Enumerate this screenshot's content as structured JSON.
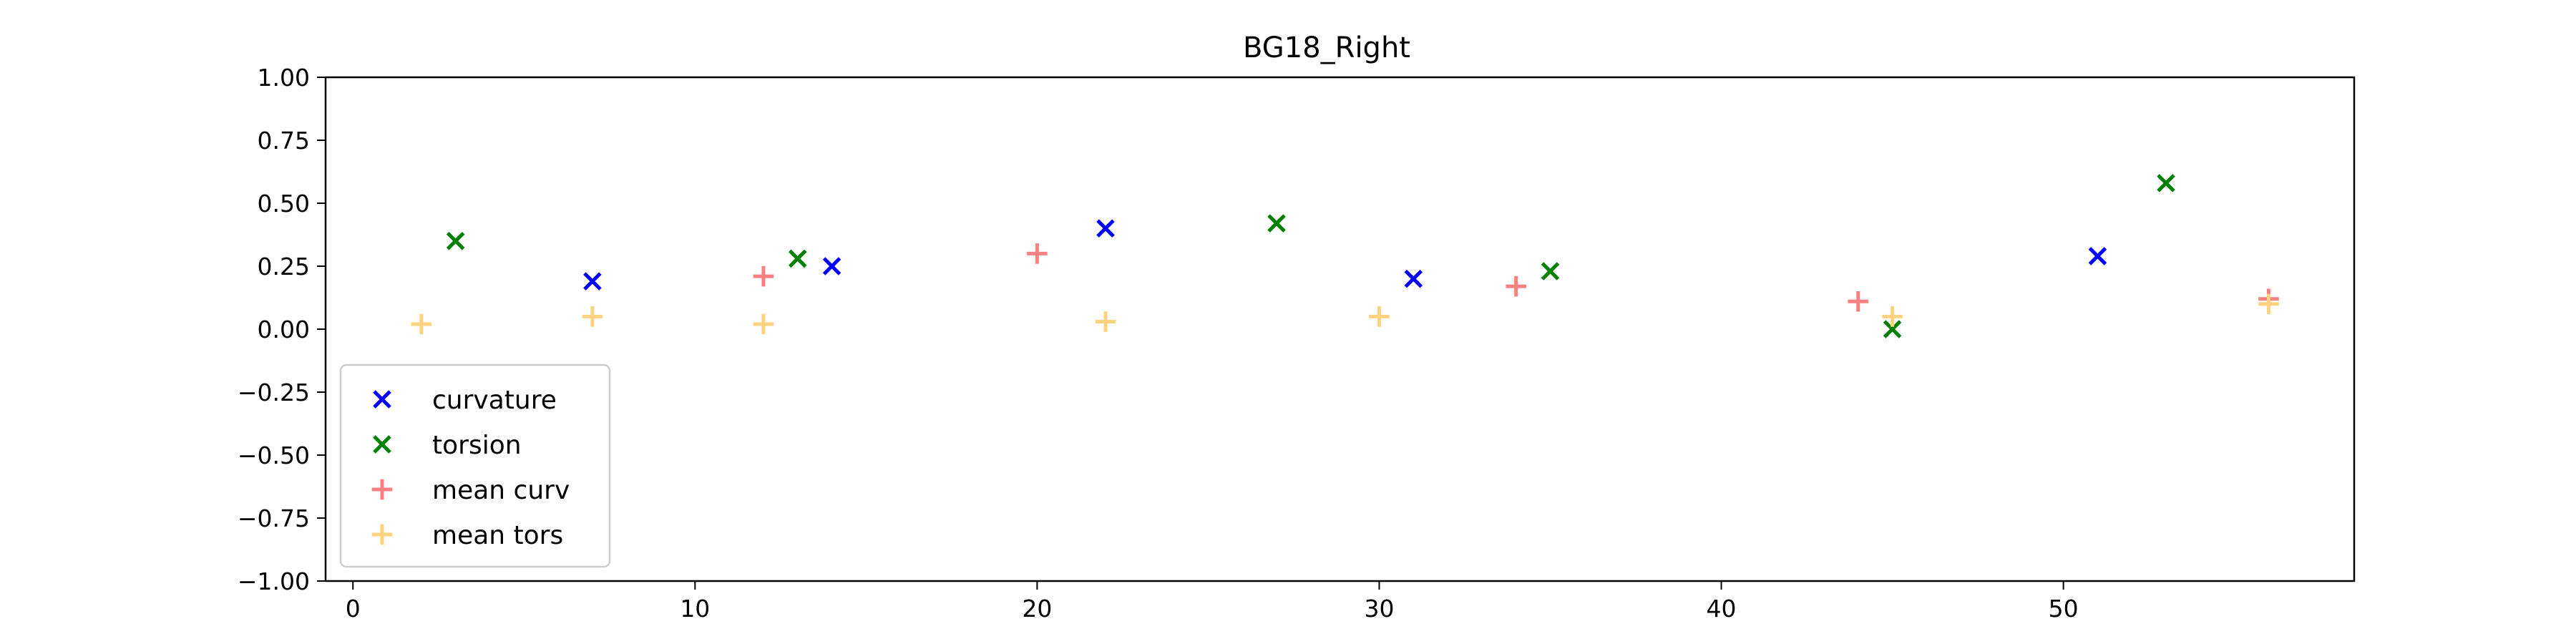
{
  "chart_data": {
    "type": "scatter",
    "title": "BG18_Right",
    "xlabel": "",
    "ylabel": "",
    "xlim": [
      -0.8,
      58.5
    ],
    "ylim": [
      -1.0,
      1.0
    ],
    "xticks": [
      0,
      10,
      20,
      30,
      40,
      50
    ],
    "yticks": [
      1.0,
      0.75,
      0.5,
      0.25,
      0.0,
      -0.25,
      -0.5,
      -0.75,
      -1.0
    ],
    "ytick_labels": [
      "1.00",
      "0.75",
      "0.50",
      "0.25",
      "0.00",
      "−0.25",
      "−0.50",
      "−0.75",
      "−1.00"
    ],
    "grid": false,
    "legend_position": "lower-left",
    "series": [
      {
        "name": "curvature",
        "marker": "x",
        "color": "#0000ff",
        "points": [
          [
            7,
            0.19
          ],
          [
            14,
            0.25
          ],
          [
            22,
            0.4
          ],
          [
            31,
            0.2
          ],
          [
            51,
            0.29
          ]
        ]
      },
      {
        "name": "torsion",
        "marker": "x",
        "color": "#008000",
        "points": [
          [
            3,
            0.35
          ],
          [
            13,
            0.28
          ],
          [
            27,
            0.42
          ],
          [
            35,
            0.23
          ],
          [
            45,
            0.0
          ],
          [
            53,
            0.58
          ]
        ]
      },
      {
        "name": "mean curv",
        "marker": "+",
        "color": "#f88080",
        "points": [
          [
            12,
            0.21
          ],
          [
            20,
            0.3
          ],
          [
            34,
            0.17
          ],
          [
            44,
            0.11
          ],
          [
            56,
            0.12
          ]
        ]
      },
      {
        "name": "mean tors",
        "marker": "+",
        "color": "#ffd27f",
        "points": [
          [
            2,
            0.02
          ],
          [
            7,
            0.05
          ],
          [
            12,
            0.02
          ],
          [
            22,
            0.03
          ],
          [
            30,
            0.05
          ],
          [
            45,
            0.05
          ],
          [
            56,
            0.1
          ]
        ]
      }
    ]
  }
}
